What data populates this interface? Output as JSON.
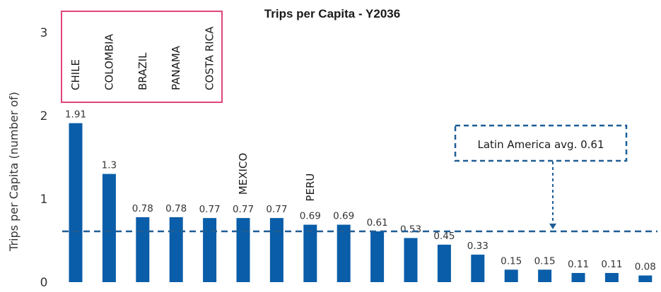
{
  "chart_data": {
    "type": "bar",
    "title": "Trips per Capita - Y2036",
    "ylabel": "Trips per Capita (number of)",
    "xlabel": "",
    "ylim": [
      0,
      3
    ],
    "yticks": [
      "0",
      "1",
      "2",
      "3"
    ],
    "bar_color": "#0a5da8",
    "values": [
      1.91,
      1.3,
      0.78,
      0.78,
      0.77,
      0.77,
      0.77,
      0.69,
      0.69,
      0.61,
      0.53,
      0.45,
      0.33,
      0.15,
      0.15,
      0.11,
      0.11,
      0.08
    ],
    "value_labels": [
      "1.91",
      "1.3",
      "0.78",
      "0.78",
      "0.77",
      "0.77",
      "0.77",
      "0.69",
      "0.69",
      "0.61",
      "0.53",
      "0.45",
      "0.33",
      "0.15",
      "0.15",
      "0.11",
      "0.11",
      "0.08"
    ],
    "bar_names": [
      "CHILE",
      "COLOMBIA",
      "BRAZIL",
      "PANAMA",
      "COSTA RICA",
      "MEXICO",
      "",
      "PERU",
      "",
      "",
      "",
      "",
      "",
      "",
      "",
      "",
      "",
      ""
    ],
    "highlight_box_color": "#e0457b",
    "average_line": {
      "value": 0.61,
      "label": "Latin America  avg. 0.61",
      "color": "#1f5d94"
    }
  }
}
